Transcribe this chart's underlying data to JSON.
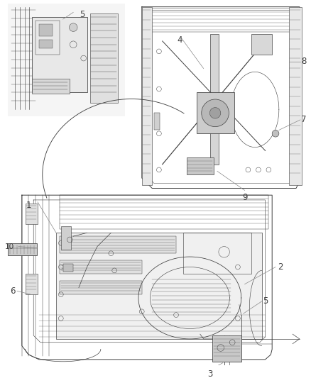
{
  "bg_color": "#ffffff",
  "line_color": "#404040",
  "label_color": "#000000",
  "fig_width": 4.38,
  "fig_height": 5.33,
  "dpi": 100,
  "label_fontsize": 8.5,
  "lw": 0.7
}
